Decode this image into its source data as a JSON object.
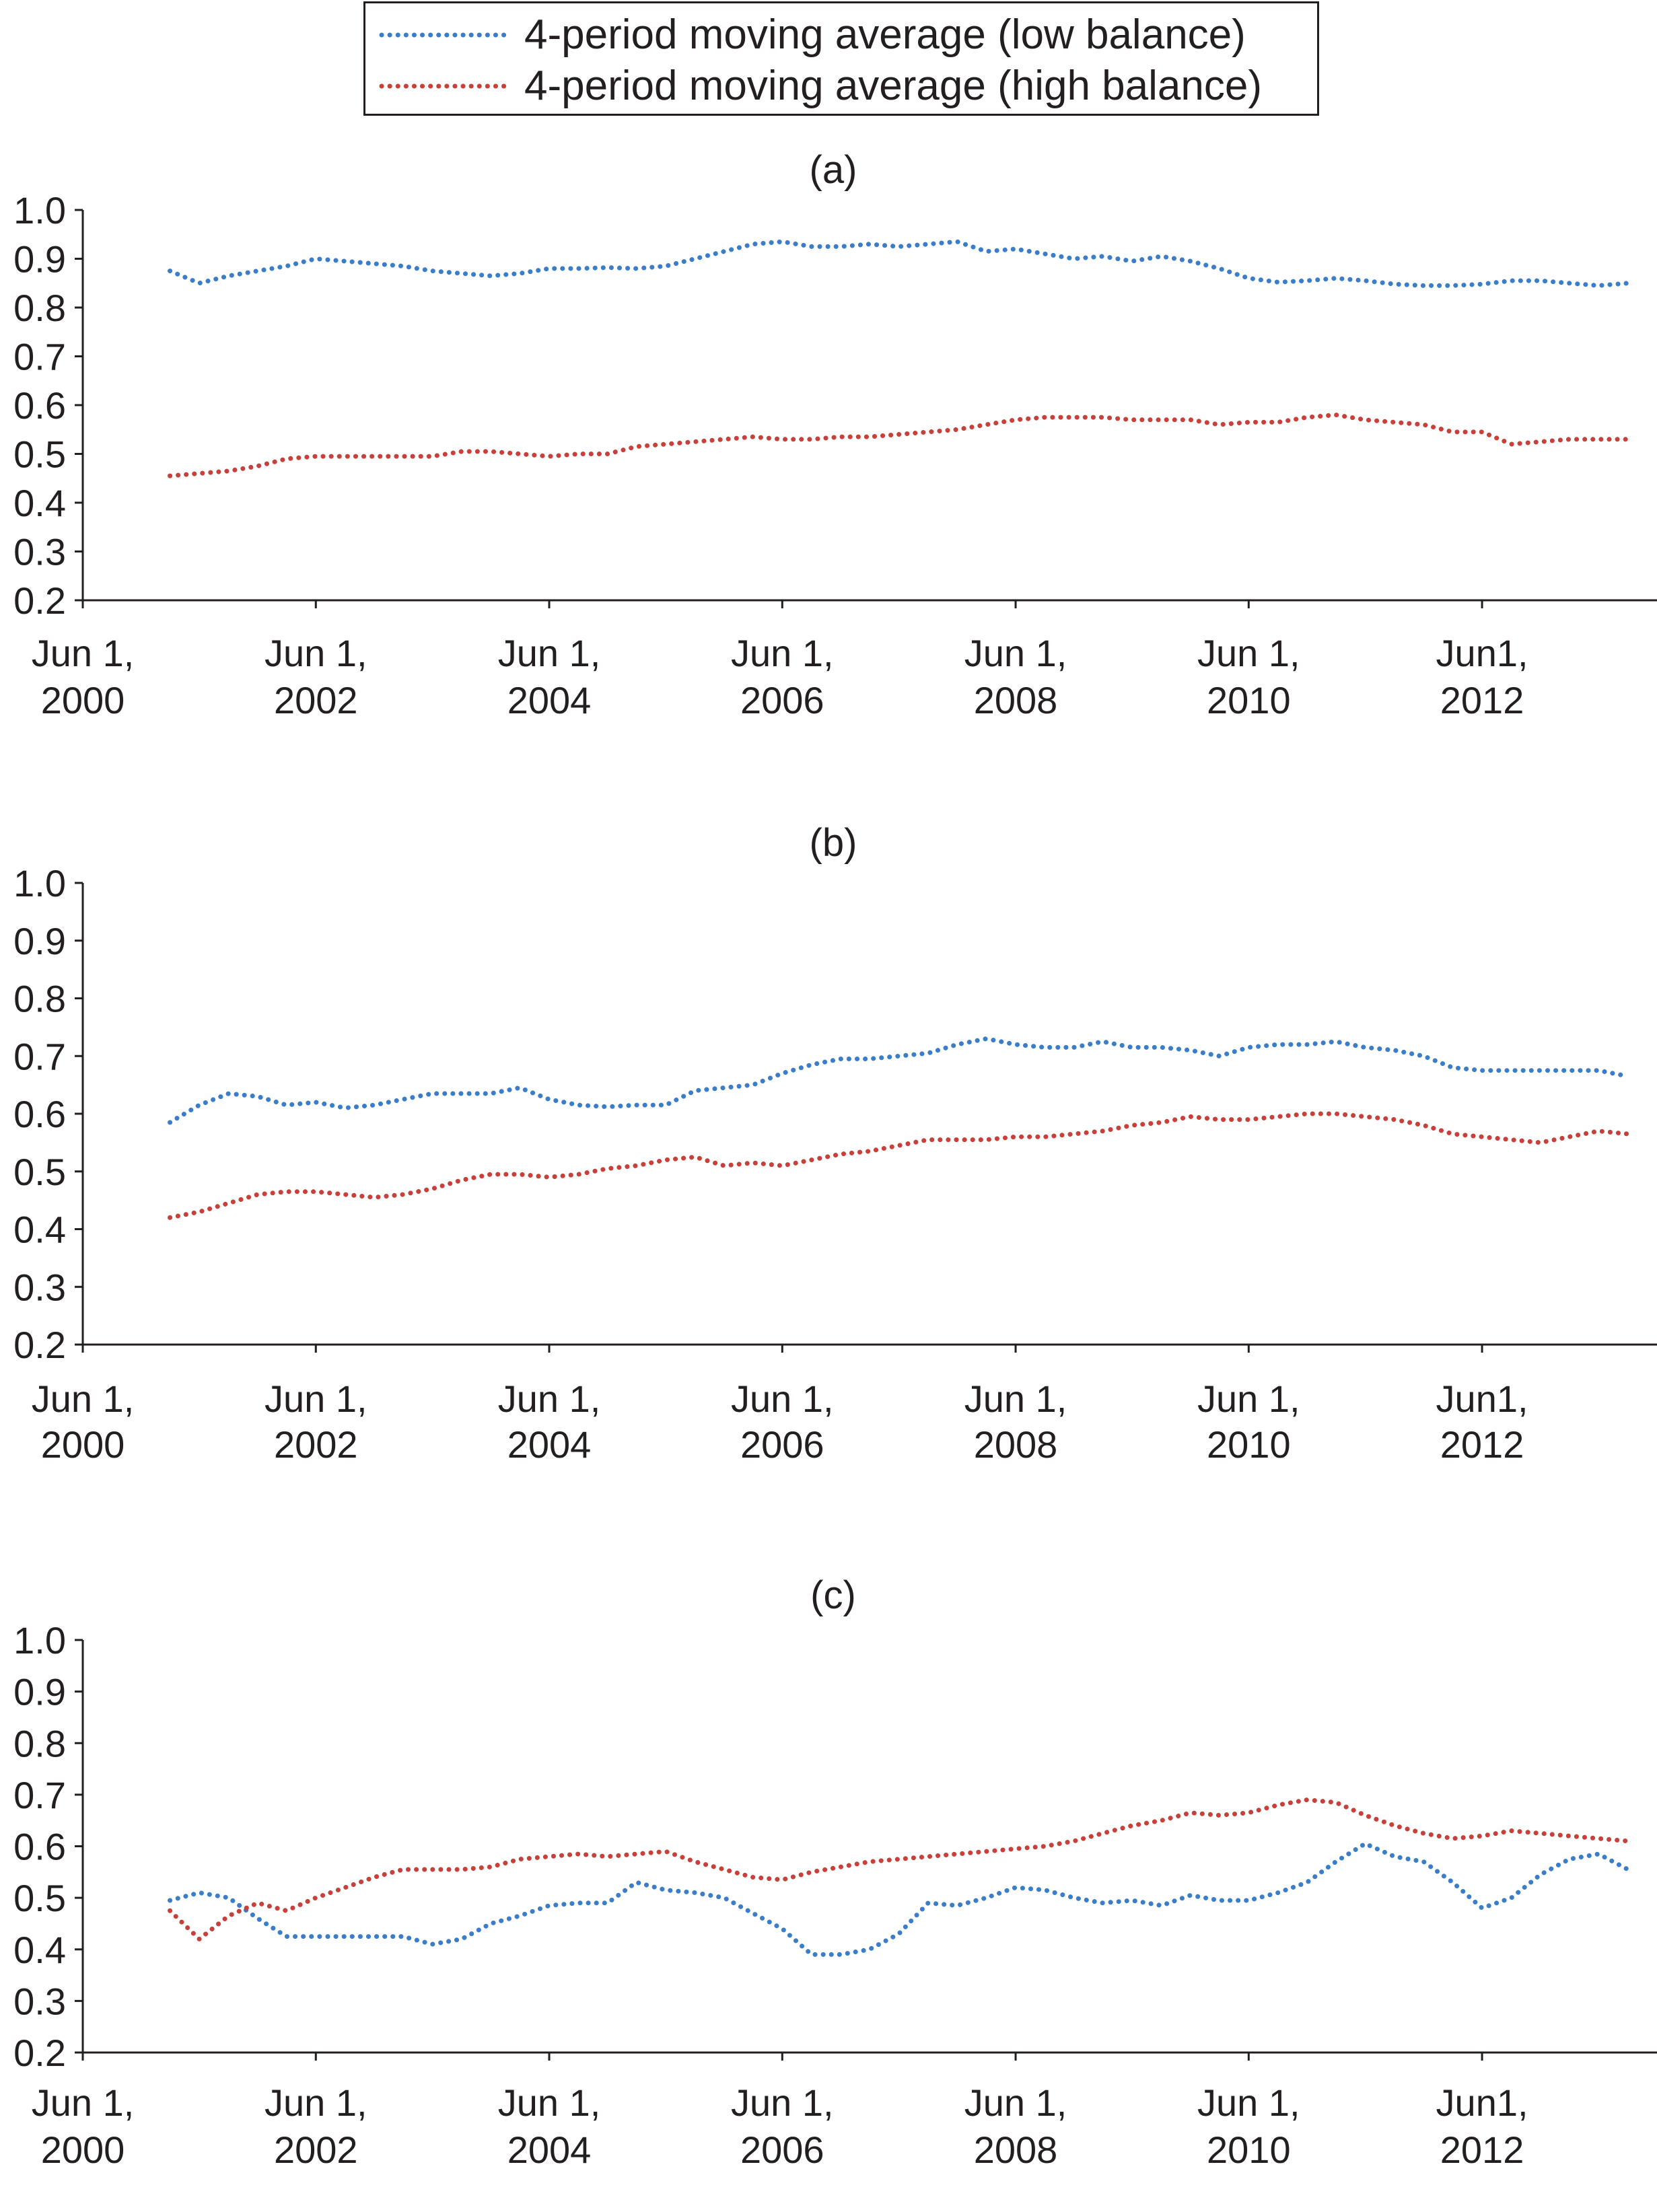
{
  "legend": {
    "low_label": "4-period moving average (low balance)",
    "high_label": "4-period moving average (high balance)"
  },
  "colors": {
    "low": "#3a7dc9",
    "high": "#c8403a",
    "axis": "#231f20"
  },
  "chart_data": [
    {
      "type": "line",
      "title": "(a)",
      "x_tick_labels": [
        [
          "Jun 1,",
          "2000"
        ],
        [
          "Jun 1,",
          "2002"
        ],
        [
          "Jun 1,",
          "2004"
        ],
        [
          "Jun 1,",
          "2006"
        ],
        [
          "Jun 1,",
          "2008"
        ],
        [
          "Jun 1,",
          "2010"
        ],
        [
          "Jun1,",
          "2012"
        ]
      ],
      "y_ticks": [
        "1.0",
        "0.9",
        "0.8",
        "0.7",
        "0.6",
        "0.5",
        "0.4",
        "0.3",
        "0.2"
      ],
      "ylim": [
        0.2,
        1.0
      ],
      "xlim": [
        "2000-06-01",
        "2013-12-01"
      ],
      "grid": false,
      "legend_position": "top-center",
      "series": [
        {
          "name": "4-period moving average (low balance)",
          "line_style": "dotted",
          "x": [
            "2001-03-01",
            "2001-06-01",
            "2001-09-01",
            "2001-12-01",
            "2002-03-01",
            "2002-06-01",
            "2002-09-01",
            "2002-12-01",
            "2003-03-01",
            "2003-06-01",
            "2003-09-01",
            "2003-12-01",
            "2004-03-01",
            "2004-06-01",
            "2004-09-01",
            "2004-12-01",
            "2005-03-01",
            "2005-06-01",
            "2005-09-01",
            "2005-12-01",
            "2006-03-01",
            "2006-06-01",
            "2006-09-01",
            "2006-12-01",
            "2007-03-01",
            "2007-06-01",
            "2007-09-01",
            "2007-12-01",
            "2008-03-01",
            "2008-06-01",
            "2008-09-01",
            "2008-12-01",
            "2009-03-01",
            "2009-06-01",
            "2009-09-01",
            "2009-12-01",
            "2010-03-01",
            "2010-06-01",
            "2010-09-01",
            "2010-12-01",
            "2011-03-01",
            "2011-06-01",
            "2011-09-01",
            "2011-12-01",
            "2012-03-01",
            "2012-06-01",
            "2012-09-01",
            "2012-12-01",
            "2013-03-01",
            "2013-06-01",
            "2013-09-01"
          ],
          "y": [
            0.875,
            0.85,
            0.865,
            0.875,
            0.885,
            0.9,
            0.895,
            0.89,
            0.885,
            0.875,
            0.87,
            0.865,
            0.87,
            0.88,
            0.88,
            0.882,
            0.88,
            0.885,
            0.9,
            0.915,
            0.93,
            0.935,
            0.925,
            0.925,
            0.93,
            0.925,
            0.93,
            0.935,
            0.915,
            0.92,
            0.91,
            0.9,
            0.905,
            0.895,
            0.905,
            0.895,
            0.88,
            0.86,
            0.852,
            0.855,
            0.86,
            0.855,
            0.848,
            0.845,
            0.845,
            0.848,
            0.855,
            0.855,
            0.85,
            0.845,
            0.85
          ]
        },
        {
          "name": "4-period moving average (high balance)",
          "line_style": "dotted",
          "x": [
            "2001-03-01",
            "2001-06-01",
            "2001-09-01",
            "2001-12-01",
            "2002-03-01",
            "2002-06-01",
            "2002-09-01",
            "2002-12-01",
            "2003-03-01",
            "2003-06-01",
            "2003-09-01",
            "2003-12-01",
            "2004-03-01",
            "2004-06-01",
            "2004-09-01",
            "2004-12-01",
            "2005-03-01",
            "2005-06-01",
            "2005-09-01",
            "2005-12-01",
            "2006-03-01",
            "2006-06-01",
            "2006-09-01",
            "2006-12-01",
            "2007-03-01",
            "2007-06-01",
            "2007-09-01",
            "2007-12-01",
            "2008-03-01",
            "2008-06-01",
            "2008-09-01",
            "2008-12-01",
            "2009-03-01",
            "2009-06-01",
            "2009-09-01",
            "2009-12-01",
            "2010-03-01",
            "2010-06-01",
            "2010-09-01",
            "2010-12-01",
            "2011-03-01",
            "2011-06-01",
            "2011-09-01",
            "2011-12-01",
            "2012-03-01",
            "2012-06-01",
            "2012-09-01",
            "2012-12-01",
            "2013-03-01",
            "2013-06-01",
            "2013-09-01"
          ],
          "y": [
            0.455,
            0.46,
            0.465,
            0.475,
            0.49,
            0.495,
            0.495,
            0.495,
            0.495,
            0.495,
            0.505,
            0.505,
            0.5,
            0.495,
            0.5,
            0.5,
            0.515,
            0.52,
            0.525,
            0.53,
            0.535,
            0.53,
            0.53,
            0.535,
            0.535,
            0.54,
            0.545,
            0.55,
            0.56,
            0.57,
            0.575,
            0.575,
            0.575,
            0.57,
            0.57,
            0.57,
            0.56,
            0.565,
            0.565,
            0.575,
            0.58,
            0.57,
            0.565,
            0.56,
            0.545,
            0.545,
            0.52,
            0.525,
            0.53,
            0.53,
            0.53
          ]
        }
      ]
    },
    {
      "type": "line",
      "title": "(b)",
      "x_tick_labels": [
        [
          "Jun 1,",
          "2000"
        ],
        [
          "Jun 1,",
          "2002"
        ],
        [
          "Jun 1,",
          "2004"
        ],
        [
          "Jun 1,",
          "2006"
        ],
        [
          "Jun 1,",
          "2008"
        ],
        [
          "Jun 1,",
          "2010"
        ],
        [
          "Jun1,",
          "2012"
        ]
      ],
      "y_ticks": [
        "1.0",
        "0.9",
        "0.8",
        "0.7",
        "0.6",
        "0.5",
        "0.4",
        "0.3",
        "0.2"
      ],
      "ylim": [
        0.2,
        1.0
      ],
      "xlim": [
        "2000-06-01",
        "2013-12-01"
      ],
      "grid": false,
      "series": [
        {
          "name": "4-period moving average (low balance)",
          "line_style": "dotted",
          "x": [
            "2001-03-01",
            "2001-06-01",
            "2001-09-01",
            "2001-12-01",
            "2002-03-01",
            "2002-06-01",
            "2002-09-01",
            "2002-12-01",
            "2003-03-01",
            "2003-06-01",
            "2003-09-01",
            "2003-12-01",
            "2004-03-01",
            "2004-06-01",
            "2004-09-01",
            "2004-12-01",
            "2005-03-01",
            "2005-06-01",
            "2005-09-01",
            "2005-12-01",
            "2006-03-01",
            "2006-06-01",
            "2006-09-01",
            "2006-12-01",
            "2007-03-01",
            "2007-06-01",
            "2007-09-01",
            "2007-12-01",
            "2008-03-01",
            "2008-06-01",
            "2008-09-01",
            "2008-12-01",
            "2009-03-01",
            "2009-06-01",
            "2009-09-01",
            "2009-12-01",
            "2010-03-01",
            "2010-06-01",
            "2010-09-01",
            "2010-12-01",
            "2011-03-01",
            "2011-06-01",
            "2011-09-01",
            "2011-12-01",
            "2012-03-01",
            "2012-06-01",
            "2012-09-01",
            "2012-12-01",
            "2013-03-01",
            "2013-06-01",
            "2013-09-01"
          ],
          "y": [
            0.585,
            0.615,
            0.635,
            0.63,
            0.615,
            0.62,
            0.61,
            0.615,
            0.625,
            0.635,
            0.635,
            0.635,
            0.645,
            0.625,
            0.615,
            0.612,
            0.615,
            0.615,
            0.64,
            0.645,
            0.65,
            0.67,
            0.685,
            0.695,
            0.695,
            0.7,
            0.705,
            0.72,
            0.73,
            0.72,
            0.715,
            0.715,
            0.725,
            0.715,
            0.715,
            0.71,
            0.7,
            0.715,
            0.72,
            0.72,
            0.725,
            0.715,
            0.71,
            0.7,
            0.68,
            0.675,
            0.675,
            0.675,
            0.675,
            0.675,
            0.665
          ]
        },
        {
          "name": "4-period moving average (high balance)",
          "line_style": "dotted",
          "x": [
            "2001-03-01",
            "2001-06-01",
            "2001-09-01",
            "2001-12-01",
            "2002-03-01",
            "2002-06-01",
            "2002-09-01",
            "2002-12-01",
            "2003-03-01",
            "2003-06-01",
            "2003-09-01",
            "2003-12-01",
            "2004-03-01",
            "2004-06-01",
            "2004-09-01",
            "2004-12-01",
            "2005-03-01",
            "2005-06-01",
            "2005-09-01",
            "2005-12-01",
            "2006-03-01",
            "2006-06-01",
            "2006-09-01",
            "2006-12-01",
            "2007-03-01",
            "2007-06-01",
            "2007-09-01",
            "2007-12-01",
            "2008-03-01",
            "2008-06-01",
            "2008-09-01",
            "2008-12-01",
            "2009-03-01",
            "2009-06-01",
            "2009-09-01",
            "2009-12-01",
            "2010-03-01",
            "2010-06-01",
            "2010-09-01",
            "2010-12-01",
            "2011-03-01",
            "2011-06-01",
            "2011-09-01",
            "2011-12-01",
            "2012-03-01",
            "2012-06-01",
            "2012-09-01",
            "2012-12-01",
            "2013-03-01",
            "2013-06-01",
            "2013-09-01"
          ],
          "y": [
            0.42,
            0.43,
            0.445,
            0.46,
            0.465,
            0.465,
            0.46,
            0.455,
            0.46,
            0.47,
            0.485,
            0.495,
            0.495,
            0.49,
            0.495,
            0.505,
            0.51,
            0.52,
            0.525,
            0.51,
            0.515,
            0.51,
            0.52,
            0.53,
            0.535,
            0.545,
            0.555,
            0.555,
            0.555,
            0.56,
            0.56,
            0.565,
            0.57,
            0.58,
            0.585,
            0.595,
            0.59,
            0.59,
            0.595,
            0.6,
            0.6,
            0.595,
            0.59,
            0.58,
            0.565,
            0.56,
            0.555,
            0.55,
            0.56,
            0.57,
            0.565
          ]
        }
      ]
    },
    {
      "type": "line",
      "title": "(c)",
      "x_tick_labels": [
        [
          "Jun 1,",
          "2000"
        ],
        [
          "Jun 1,",
          "2002"
        ],
        [
          "Jun 1,",
          "2004"
        ],
        [
          "Jun 1,",
          "2006"
        ],
        [
          "Jun 1,",
          "2008"
        ],
        [
          "Jun 1,",
          "2010"
        ],
        [
          "Jun1,",
          "2012"
        ]
      ],
      "y_ticks": [
        "1.0",
        "0.9",
        "0.8",
        "0.7",
        "0.6",
        "0.5",
        "0.4",
        "0.3",
        "0.2"
      ],
      "ylim": [
        0.2,
        1.0
      ],
      "xlim": [
        "2000-06-01",
        "2013-12-01"
      ],
      "grid": false,
      "series": [
        {
          "name": "4-period moving average (low balance)",
          "line_style": "dotted",
          "x": [
            "2001-03-01",
            "2001-06-01",
            "2001-09-01",
            "2001-12-01",
            "2002-03-01",
            "2002-06-01",
            "2002-09-01",
            "2002-12-01",
            "2003-03-01",
            "2003-06-01",
            "2003-09-01",
            "2003-12-01",
            "2004-03-01",
            "2004-06-01",
            "2004-09-01",
            "2004-12-01",
            "2005-03-01",
            "2005-06-01",
            "2005-09-01",
            "2005-12-01",
            "2006-03-01",
            "2006-06-01",
            "2006-09-01",
            "2006-12-01",
            "2007-03-01",
            "2007-06-01",
            "2007-09-01",
            "2007-12-01",
            "2008-03-01",
            "2008-06-01",
            "2008-09-01",
            "2008-12-01",
            "2009-03-01",
            "2009-06-01",
            "2009-09-01",
            "2009-12-01",
            "2010-03-01",
            "2010-06-01",
            "2010-09-01",
            "2010-12-01",
            "2011-03-01",
            "2011-06-01",
            "2011-09-01",
            "2011-12-01",
            "2012-03-01",
            "2012-06-01",
            "2012-09-01",
            "2012-12-01",
            "2013-03-01",
            "2013-06-01",
            "2013-09-01"
          ],
          "y": [
            0.495,
            0.51,
            0.5,
            0.46,
            0.425,
            0.425,
            0.425,
            0.425,
            0.425,
            0.41,
            0.42,
            0.45,
            0.465,
            0.485,
            0.49,
            0.49,
            0.53,
            0.515,
            0.51,
            0.5,
            0.47,
            0.44,
            0.39,
            0.39,
            0.4,
            0.43,
            0.49,
            0.485,
            0.5,
            0.52,
            0.515,
            0.5,
            0.49,
            0.495,
            0.485,
            0.505,
            0.495,
            0.495,
            0.51,
            0.53,
            0.57,
            0.605,
            0.58,
            0.57,
            0.53,
            0.48,
            0.5,
            0.545,
            0.575,
            0.585,
            0.555
          ]
        },
        {
          "name": "4-period moving average (high balance)",
          "line_style": "dotted",
          "x": [
            "2001-03-01",
            "2001-06-01",
            "2001-09-01",
            "2001-12-01",
            "2002-03-01",
            "2002-06-01",
            "2002-09-01",
            "2002-12-01",
            "2003-03-01",
            "2003-06-01",
            "2003-09-01",
            "2003-12-01",
            "2004-03-01",
            "2004-06-01",
            "2004-09-01",
            "2004-12-01",
            "2005-03-01",
            "2005-06-01",
            "2005-09-01",
            "2005-12-01",
            "2006-03-01",
            "2006-06-01",
            "2006-09-01",
            "2006-12-01",
            "2007-03-01",
            "2007-06-01",
            "2007-09-01",
            "2007-12-01",
            "2008-03-01",
            "2008-06-01",
            "2008-09-01",
            "2008-12-01",
            "2009-03-01",
            "2009-06-01",
            "2009-09-01",
            "2009-12-01",
            "2010-03-01",
            "2010-06-01",
            "2010-09-01",
            "2010-12-01",
            "2011-03-01",
            "2011-06-01",
            "2011-09-01",
            "2011-12-01",
            "2012-03-01",
            "2012-06-01",
            "2012-09-01",
            "2012-12-01",
            "2013-03-01",
            "2013-06-01",
            "2013-09-01"
          ],
          "y": [
            0.475,
            0.42,
            0.465,
            0.49,
            0.475,
            0.5,
            0.52,
            0.54,
            0.555,
            0.555,
            0.555,
            0.56,
            0.575,
            0.58,
            0.585,
            0.58,
            0.585,
            0.59,
            0.57,
            0.555,
            0.54,
            0.535,
            0.55,
            0.56,
            0.57,
            0.575,
            0.58,
            0.585,
            0.59,
            0.595,
            0.6,
            0.61,
            0.625,
            0.64,
            0.65,
            0.665,
            0.66,
            0.665,
            0.68,
            0.69,
            0.685,
            0.66,
            0.64,
            0.625,
            0.615,
            0.62,
            0.63,
            0.625,
            0.62,
            0.615,
            0.61
          ]
        }
      ]
    }
  ]
}
